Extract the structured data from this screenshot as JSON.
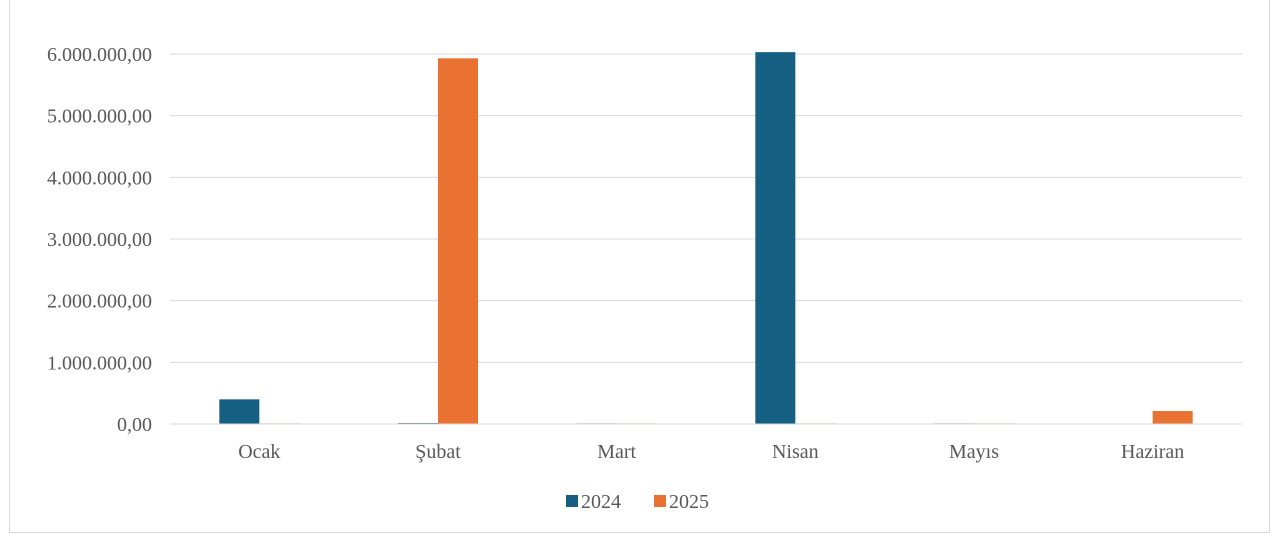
{
  "chart_data": {
    "type": "bar",
    "categories": [
      "Ocak",
      "Şubat",
      "Mart",
      "Nisan",
      "Mayıs",
      "Haziran"
    ],
    "series": [
      {
        "name": "2024",
        "color": "#155f83",
        "values": [
          400000,
          15000,
          10000,
          6030000,
          10000,
          0
        ]
      },
      {
        "name": "2025",
        "color": "#e97132",
        "values": [
          10000,
          5930000,
          10000,
          10000,
          10000,
          210000
        ]
      }
    ],
    "yticks": [
      "0,00",
      "1.000.000,00",
      "2.000.000,00",
      "3.000.000,00",
      "4.000.000,00",
      "5.000.000,00",
      "6.000.000,00"
    ],
    "ylim": [
      0,
      6000000
    ],
    "grid": true,
    "legend_position": "bottom",
    "title": "",
    "xlabel": "",
    "ylabel": ""
  }
}
